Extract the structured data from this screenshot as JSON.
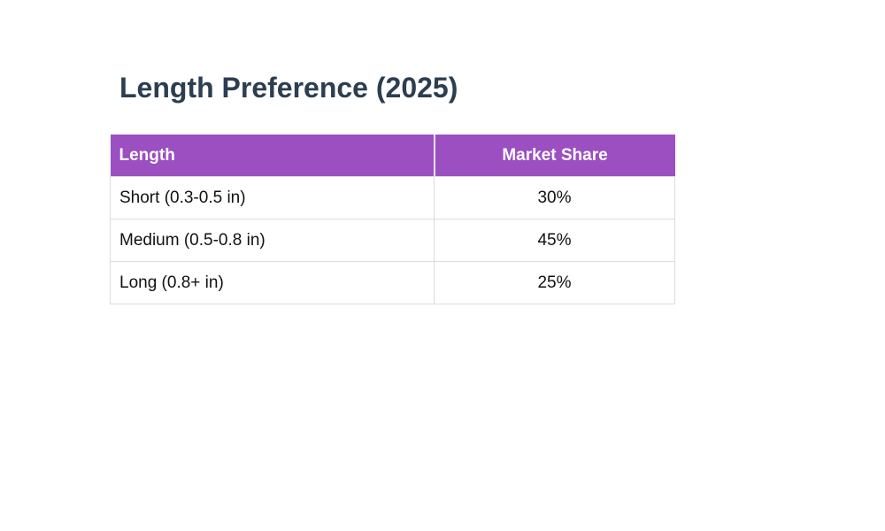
{
  "page": {
    "title": "Length Preference (2025)"
  },
  "table": {
    "headers": [
      "Length",
      "Market Share"
    ],
    "rows": [
      {
        "length": "Short (0.3-0.5 in)",
        "market_share": "30%"
      },
      {
        "length": "Medium (0.5-0.8 in)",
        "market_share": "45%"
      },
      {
        "length": "Long (0.8+ in)",
        "market_share": "25%"
      }
    ]
  },
  "colors": {
    "header_bg": "#9b4fc1",
    "header_text": "#ffffff",
    "title_text": "#2c3e50",
    "body_text": "#111111",
    "row_border": "#dcdcdc"
  }
}
